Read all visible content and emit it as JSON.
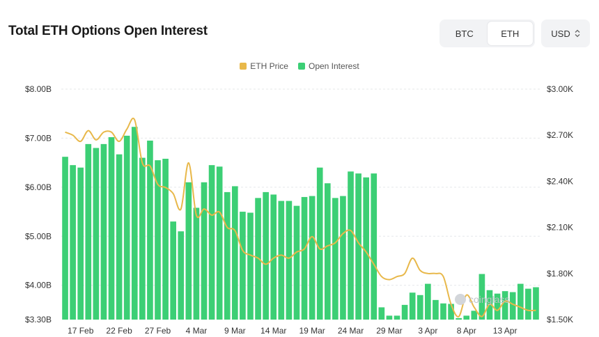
{
  "header": {
    "title": "Total ETH Options Open Interest"
  },
  "toggle": {
    "btc": "BTC",
    "eth": "ETH",
    "active": "ETH"
  },
  "currency": {
    "value": "USD"
  },
  "colors": {
    "price": "#e8b84a",
    "oi": "#3ccf75",
    "grid": "#e5e7ea"
  },
  "watermark": "coinglass",
  "chart_data": {
    "type": "bar",
    "legend": [
      "ETH Price",
      "Open Interest"
    ],
    "legend_position": "top-center",
    "grid": true,
    "y_left": {
      "ticks": [
        "$8.00B",
        "$7.00B",
        "$6.00B",
        "$5.00B",
        "$4.00B",
        "$3.30B"
      ],
      "range": [
        3.3,
        8.0
      ],
      "unit": "B"
    },
    "y_right": {
      "ticks": [
        "$3.00K",
        "$2.70K",
        "$2.40K",
        "$2.10K",
        "$1.80K",
        "$1.50K"
      ],
      "range": [
        1.5,
        3.0
      ],
      "unit": "K"
    },
    "x_labels": [
      "17 Feb",
      "22 Feb",
      "27 Feb",
      "4 Mar",
      "9 Mar",
      "14 Mar",
      "19 Mar",
      "24 Mar",
      "29 Mar",
      "3 Apr",
      "8 Apr",
      "13 Apr"
    ],
    "x_label_index": [
      2,
      7,
      12,
      17,
      22,
      27,
      32,
      37,
      42,
      47,
      52,
      57
    ],
    "series": [
      {
        "name": "Open Interest",
        "type": "bar",
        "values": [
          6.62,
          6.45,
          6.4,
          6.88,
          6.8,
          6.88,
          7.02,
          6.67,
          7.05,
          7.23,
          6.6,
          6.95,
          6.55,
          6.58,
          5.3,
          5.1,
          6.1,
          5.58,
          6.1,
          6.45,
          6.42,
          5.9,
          6.02,
          5.5,
          5.48,
          5.78,
          5.9,
          5.85,
          5.72,
          5.72,
          5.62,
          5.8,
          5.82,
          6.4,
          6.08,
          5.78,
          5.82,
          6.32,
          6.28,
          6.2,
          6.28,
          3.55,
          3.38,
          3.38,
          3.6,
          3.85,
          3.8,
          4.03,
          3.7,
          3.63,
          3.62,
          3.33,
          3.38,
          3.48,
          4.23,
          3.9,
          3.83,
          3.88,
          3.86,
          4.03,
          3.93,
          3.96
        ]
      },
      {
        "name": "ETH Price",
        "type": "line",
        "values": [
          2.72,
          2.7,
          2.66,
          2.73,
          2.67,
          2.72,
          2.72,
          2.66,
          2.74,
          2.8,
          2.52,
          2.5,
          2.38,
          2.36,
          2.32,
          2.22,
          2.52,
          2.18,
          2.22,
          2.18,
          2.2,
          2.1,
          2.08,
          1.95,
          1.92,
          1.9,
          1.86,
          1.9,
          1.92,
          1.9,
          1.94,
          1.96,
          2.04,
          1.96,
          1.98,
          2.0,
          2.06,
          2.08,
          2.0,
          1.94,
          1.86,
          1.78,
          1.76,
          1.78,
          1.8,
          1.9,
          1.82,
          1.8,
          1.8,
          1.78,
          1.6,
          1.52,
          1.66,
          1.58,
          1.52,
          1.6,
          1.56,
          1.62,
          1.6,
          1.58,
          1.56,
          1.56
        ]
      }
    ]
  }
}
